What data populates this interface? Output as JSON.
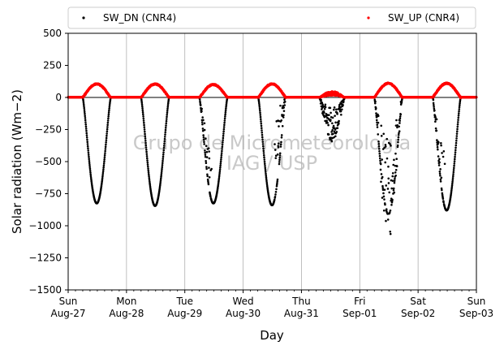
{
  "chart_data": {
    "type": "scatter",
    "title": "",
    "xlabel": "Day",
    "ylabel": "Solar radiation ($Wm{-2}$)",
    "ylabel_display": "Solar radiation (Wm−2)",
    "ylim": [
      -1500,
      500
    ],
    "yticks": [
      500,
      250,
      0,
      -250,
      -500,
      -750,
      -1000,
      -1250,
      -1500
    ],
    "ytick_labels": [
      "500",
      "250",
      "0",
      "−250",
      "−500",
      "−750",
      "−1000",
      "−1250",
      "−1500"
    ],
    "xlim_days": [
      0,
      7
    ],
    "xticks": [
      {
        "day": 0,
        "weekday": "Sun",
        "date": "Aug-27"
      },
      {
        "day": 1,
        "weekday": "Mon",
        "date": "Aug-28"
      },
      {
        "day": 2,
        "weekday": "Tue",
        "date": "Aug-29"
      },
      {
        "day": 3,
        "weekday": "Wed",
        "date": "Aug-30"
      },
      {
        "day": 4,
        "weekday": "Thu",
        "date": "Aug-31"
      },
      {
        "day": 5,
        "weekday": "Fri",
        "date": "Sep-01"
      },
      {
        "day": 6,
        "weekday": "Sat",
        "date": "Sep-02"
      },
      {
        "day": 7,
        "weekday": "Sun",
        "date": "Sep-03"
      }
    ],
    "grid": "vertical",
    "zero_line": true,
    "legend": {
      "placement": "top, above plot",
      "entries": [
        {
          "name": "SW_DN (CNR4)",
          "color": "#000000"
        },
        {
          "name": "SW_UP (CNR4)",
          "color": "#ff0000"
        }
      ]
    },
    "watermark": [
      "Grupo de Micrometeorologia",
      "IAG / USP"
    ],
    "series": [
      {
        "name": "SW_DN (CNR4)",
        "color": "#000000",
        "description": "Downward shortwave (plotted negative), daily envelope between sunrise/sunset",
        "days": [
          {
            "day": 0,
            "sunrise": 0.25,
            "sunset": 0.73,
            "peak": -825,
            "type": "clear"
          },
          {
            "day": 1,
            "sunrise": 0.25,
            "sunset": 0.73,
            "peak": -845,
            "type": "clear"
          },
          {
            "day": 2,
            "sunrise": 0.25,
            "sunset": 0.73,
            "peak": -825,
            "type": "clear_morning_scatter"
          },
          {
            "day": 3,
            "sunrise": 0.26,
            "sunset": 0.73,
            "peak": -840,
            "type": "clear_afternoon_scatter"
          },
          {
            "day": 4,
            "sunrise": 0.31,
            "sunset": 0.74,
            "peak": -300,
            "type": "cloudy"
          },
          {
            "day": 5,
            "sunrise": 0.25,
            "sunset": 0.73,
            "peak": -910,
            "type": "partly_cloudy"
          },
          {
            "day": 6,
            "sunrise": 0.25,
            "sunset": 0.73,
            "peak": -880,
            "type": "clear_morning_scatter"
          }
        ]
      },
      {
        "name": "SW_UP (CNR4)",
        "color": "#ff0000",
        "description": "Upward (reflected) shortwave, positive",
        "days": [
          {
            "day": 0,
            "peak": 105
          },
          {
            "day": 1,
            "peak": 105
          },
          {
            "day": 2,
            "peak": 100
          },
          {
            "day": 3,
            "peak": 105
          },
          {
            "day": 4,
            "peak": 40
          },
          {
            "day": 5,
            "peak": 110
          },
          {
            "day": 6,
            "peak": 110
          }
        ]
      }
    ]
  }
}
